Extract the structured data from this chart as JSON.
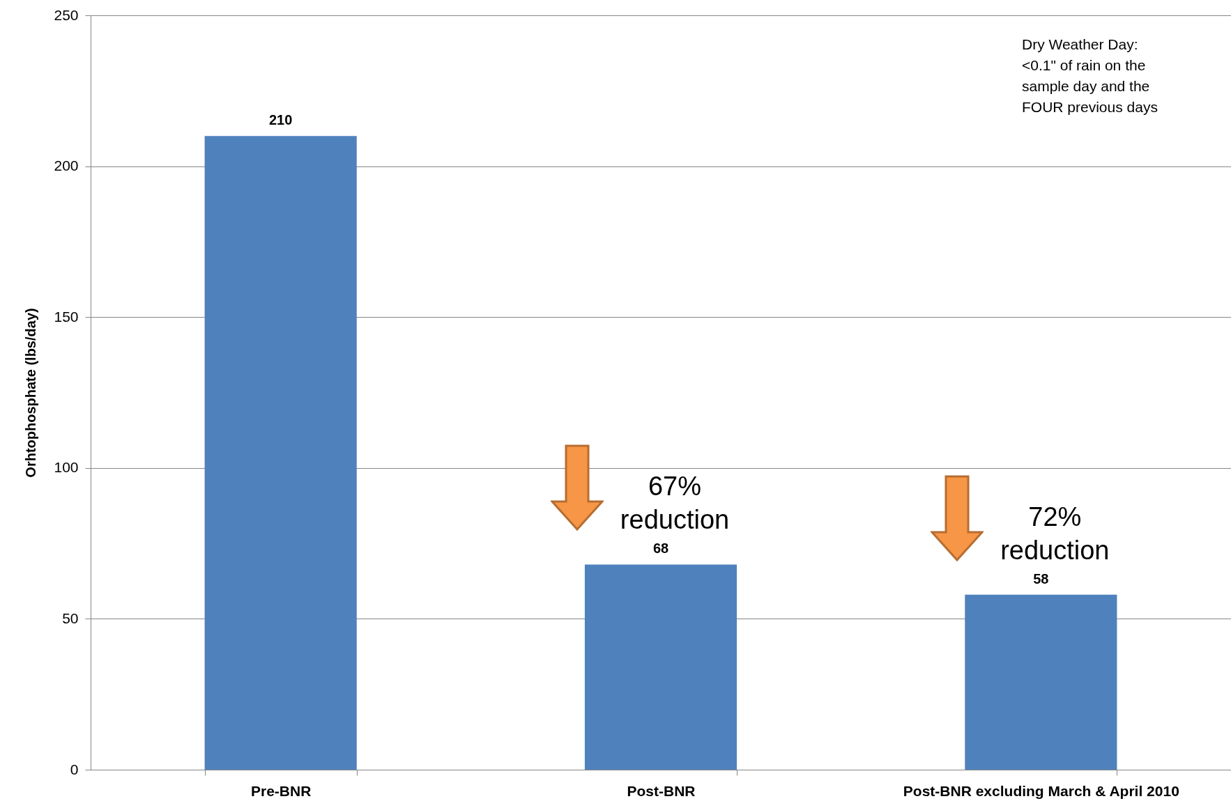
{
  "chart_data": {
    "type": "bar",
    "ylabel": "Orhtophosphate  (lbs/day)",
    "categories": [
      "Pre-BNR",
      "Post-BNR",
      "Post-BNR excluding March & April 2010"
    ],
    "values": [
      210,
      68,
      58
    ],
    "color": "#4f81bd",
    "ylim": [
      0,
      250
    ],
    "yticks": [
      0,
      50,
      100,
      150,
      200,
      250
    ],
    "grid": "y",
    "data_labels": true,
    "annotations": [
      "Dry Weather Day:\n<0.1\" of rain on the\nsample day and the\nFOUR previous days",
      "67%\nreduction",
      "72%\nreduction"
    ]
  }
}
